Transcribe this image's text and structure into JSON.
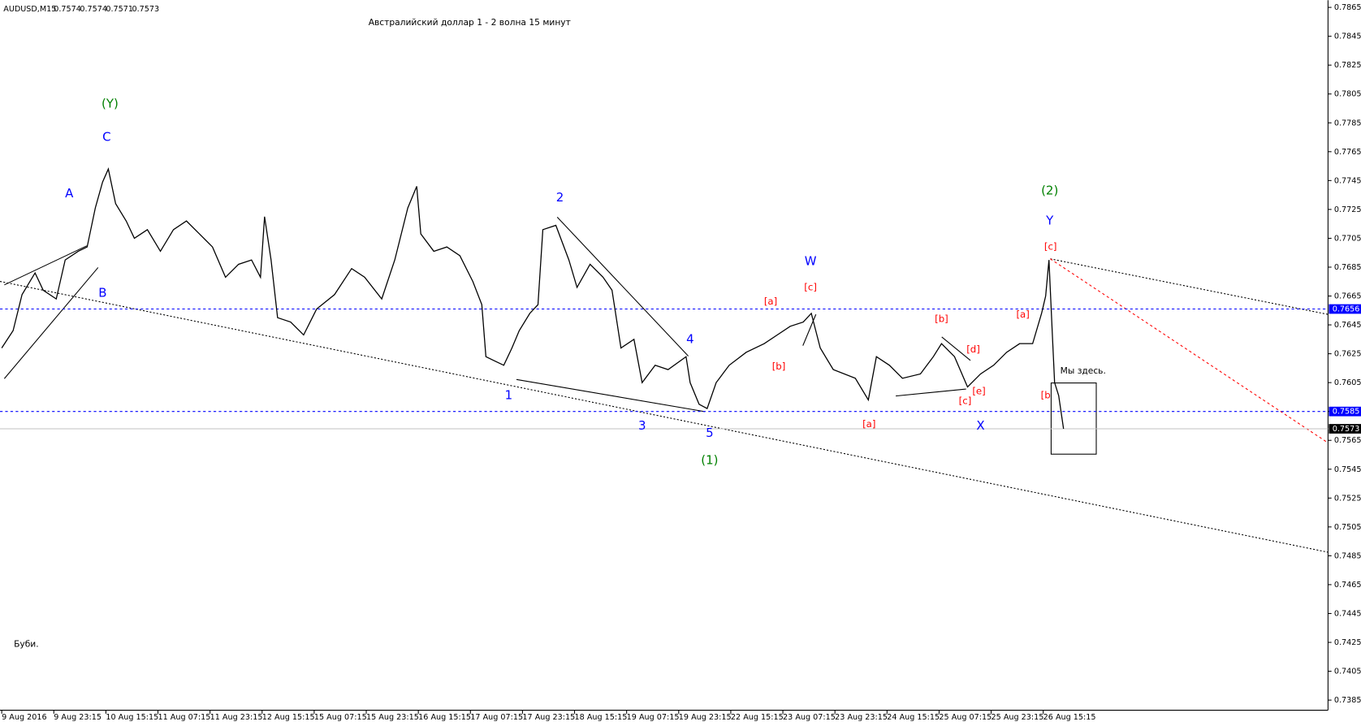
{
  "chart_data": {
    "type": "line",
    "symbol": "AUDUSD,M15",
    "ohlc": [
      0.7574,
      0.7574,
      0.7571,
      0.7573
    ],
    "title": "Австралийский доллар 1 - 2 волна 15 минут",
    "footer_note": "Буби.",
    "color": "#000000",
    "x": [
      0,
      14,
      25,
      41,
      51,
      67,
      78,
      94,
      105,
      115,
      124,
      131,
      140,
      153,
      163,
      179,
      195,
      211,
      227,
      243,
      259,
      275,
      291,
      307,
      318,
      323,
      331,
      339,
      355,
      371,
      387,
      409,
      430,
      446,
      467,
      483,
      499,
      510,
      515,
      531,
      547,
      563,
      579,
      590,
      595,
      606,
      617,
      627,
      636,
      649,
      659,
      665,
      681,
      697,
      707,
      723,
      739,
      750,
      761,
      777,
      787,
      803,
      819,
      841,
      846,
      857,
      867,
      878,
      894,
      915,
      937,
      953,
      969,
      985,
      995,
      1006,
      1022,
      1049,
      1065,
      1075,
      1091,
      1107,
      1129,
      1145,
      1155,
      1171,
      1187,
      1203,
      1219,
      1235,
      1251,
      1267,
      1278,
      1283,
      1287,
      1291,
      1294,
      1299,
      1305
    ],
    "values": [
      0.7629,
      0.7641,
      0.7666,
      0.7681,
      0.7669,
      0.7663,
      0.769,
      0.7696,
      0.7699,
      0.7726,
      0.7744,
      0.7753,
      0.7729,
      0.7717,
      0.7705,
      0.7711,
      0.7696,
      0.7711,
      0.7717,
      0.7708,
      0.7699,
      0.7678,
      0.7687,
      0.769,
      0.7678,
      0.772,
      0.769,
      0.765,
      0.7647,
      0.7638,
      0.7656,
      0.7666,
      0.7684,
      0.7678,
      0.7663,
      0.769,
      0.7726,
      0.7741,
      0.7708,
      0.7696,
      0.7699,
      0.7693,
      0.7675,
      0.7659,
      0.7623,
      0.762,
      0.7617,
      0.7629,
      0.7641,
      0.7653,
      0.7659,
      0.7711,
      0.7714,
      0.769,
      0.7671,
      0.7687,
      0.7678,
      0.7669,
      0.7629,
      0.7635,
      0.7605,
      0.7617,
      0.7614,
      0.7623,
      0.7605,
      0.759,
      0.7587,
      0.7605,
      0.7617,
      0.7626,
      0.7632,
      0.7638,
      0.7644,
      0.7647,
      0.7653,
      0.7629,
      0.7614,
      0.7608,
      0.7593,
      0.7623,
      0.7617,
      0.7608,
      0.7611,
      0.7623,
      0.7632,
      0.7623,
      0.7602,
      0.7611,
      0.7617,
      0.7626,
      0.7632,
      0.7632,
      0.7653,
      0.7665,
      0.769,
      0.7641,
      0.7605,
      0.7596,
      0.7573
    ],
    "xlim": [
      0,
      1630
    ],
    "xticks": [
      {
        "value": 0,
        "label": "9 Aug 2016"
      },
      {
        "value": 64,
        "label": "9 Aug 23:15"
      },
      {
        "value": 128,
        "label": "10 Aug 15:15"
      },
      {
        "value": 192,
        "label": "11 Aug 07:15"
      },
      {
        "value": 256,
        "label": "11 Aug 23:15"
      },
      {
        "value": 320,
        "label": "12 Aug 15:15"
      },
      {
        "value": 384,
        "label": "15 Aug 07:15"
      },
      {
        "value": 448,
        "label": "15 Aug 23:15"
      },
      {
        "value": 512,
        "label": "16 Aug 15:15"
      },
      {
        "value": 576,
        "label": "17 Aug 07:15"
      },
      {
        "value": 640,
        "label": "17 Aug 23:15"
      },
      {
        "value": 704,
        "label": "18 Aug 15:15"
      },
      {
        "value": 768,
        "label": "19 Aug 07:15"
      },
      {
        "value": 832,
        "label": "19 Aug 23:15"
      },
      {
        "value": 896,
        "label": "22 Aug 15:15"
      },
      {
        "value": 960,
        "label": "23 Aug 07:15"
      },
      {
        "value": 1024,
        "label": "23 Aug 23:15"
      },
      {
        "value": 1088,
        "label": "24 Aug 15:15"
      },
      {
        "value": 1152,
        "label": "25 Aug 07:15"
      },
      {
        "value": 1216,
        "label": "25 Aug 23:15"
      },
      {
        "value": 1280,
        "label": "26 Aug 15:15"
      }
    ],
    "ylim": [
      0.7378,
      0.787
    ],
    "yticks": [
      0.7385,
      0.7405,
      0.7425,
      0.7445,
      0.7465,
      0.7485,
      0.7505,
      0.7525,
      0.7545,
      0.7565,
      0.7585,
      0.7605,
      0.7625,
      0.7645,
      0.7665,
      0.7685,
      0.7705,
      0.7725,
      0.7745,
      0.7765,
      0.7785,
      0.7805,
      0.7825,
      0.7845,
      0.7865
    ],
    "price_lines": [
      {
        "value": 0.7656,
        "color": "#0000ff",
        "style": "dashed"
      },
      {
        "value": 0.7585,
        "color": "#0000ff",
        "style": "dashed"
      },
      {
        "value": 0.7573,
        "color": "#000000",
        "style": "solid"
      }
    ],
    "annotations": [
      {
        "text": "(Y)",
        "x": 133,
        "y": 0.7798,
        "color": "#008000"
      },
      {
        "text": "C",
        "x": 129,
        "y": 0.7775,
        "color": "#0000ff"
      },
      {
        "text": "A",
        "x": 83,
        "y": 0.7736,
        "color": "#0000ff"
      },
      {
        "text": "B",
        "x": 124,
        "y": 0.7667,
        "color": "#0000ff"
      },
      {
        "text": "1",
        "x": 623,
        "y": 0.7596,
        "color": "#0000ff"
      },
      {
        "text": "2",
        "x": 686,
        "y": 0.7733,
        "color": "#0000ff"
      },
      {
        "text": "3",
        "x": 787,
        "y": 0.7575,
        "color": "#0000ff"
      },
      {
        "text": "4",
        "x": 846,
        "y": 0.7635,
        "color": "#0000ff"
      },
      {
        "text": "5",
        "x": 870,
        "y": 0.757,
        "color": "#0000ff"
      },
      {
        "text": "(1)",
        "x": 870,
        "y": 0.7551,
        "color": "#008000"
      },
      {
        "text": "W",
        "x": 994,
        "y": 0.7689,
        "color": "#0000ff"
      },
      {
        "text": "[c]",
        "x": 994,
        "y": 0.7671,
        "color": "#ff0000"
      },
      {
        "text": "[a]",
        "x": 945,
        "y": 0.7661,
        "color": "#ff0000"
      },
      {
        "text": "[b]",
        "x": 955,
        "y": 0.7616,
        "color": "#ff0000"
      },
      {
        "text": "[a]",
        "x": 1066,
        "y": 0.7576,
        "color": "#ff0000"
      },
      {
        "text": "[b]",
        "x": 1155,
        "y": 0.7649,
        "color": "#ff0000"
      },
      {
        "text": "[d]",
        "x": 1194,
        "y": 0.7628,
        "color": "#ff0000"
      },
      {
        "text": "[e]",
        "x": 1201,
        "y": 0.7599,
        "color": "#ff0000"
      },
      {
        "text": "[c]",
        "x": 1184,
        "y": 0.7592,
        "color": "#ff0000"
      },
      {
        "text": "X",
        "x": 1203,
        "y": 0.7575,
        "color": "#0000ff"
      },
      {
        "text": "(2)",
        "x": 1288,
        "y": 0.7738,
        "color": "#008000"
      },
      {
        "text": "Y",
        "x": 1288,
        "y": 0.7717,
        "color": "#0000ff"
      },
      {
        "text": "[c]",
        "x": 1289,
        "y": 0.7699,
        "color": "#ff0000"
      },
      {
        "text": "[a]",
        "x": 1255,
        "y": 0.7652,
        "color": "#ff0000"
      },
      {
        "text": "[b",
        "x": 1283,
        "y": 0.7596,
        "color": "#ff0000"
      },
      {
        "text": "Мы здесь.",
        "x": 1329,
        "y": 0.7613,
        "color": "#000000"
      }
    ]
  }
}
